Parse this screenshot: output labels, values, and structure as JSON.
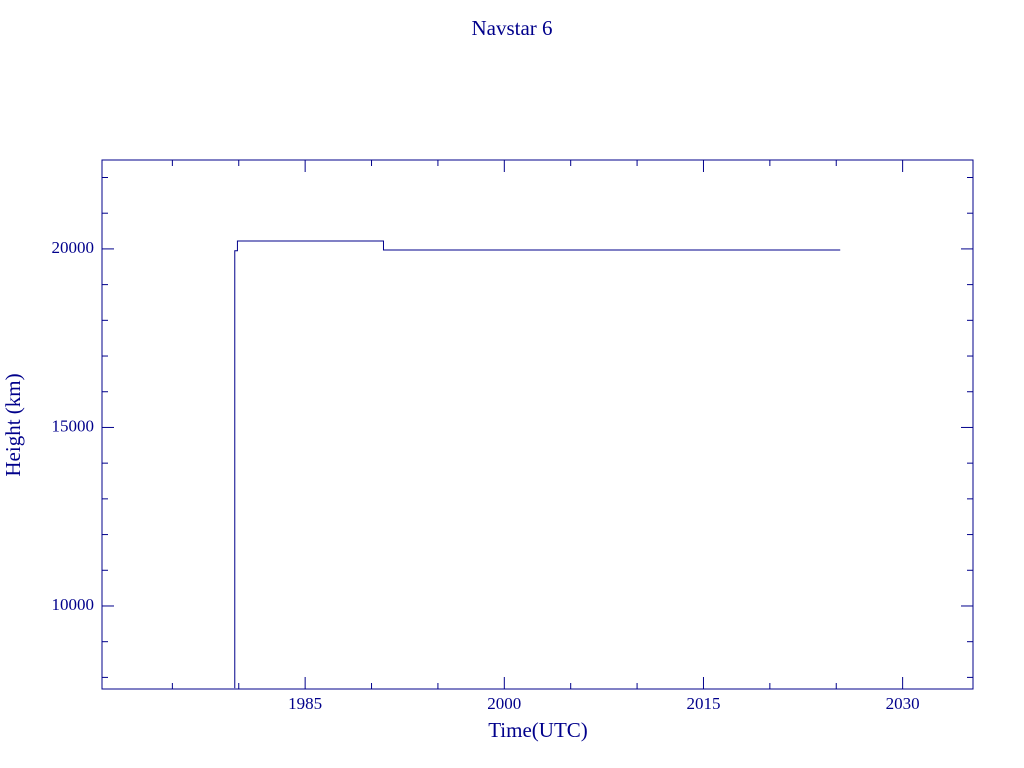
{
  "chart_data": {
    "type": "line",
    "title": "Navstar 6",
    "x_label": "Time(UTC)",
    "y_label": "Height (km)",
    "color": "#00008b",
    "x": [
      1979.7,
      1979.7,
      1979.9,
      1979.9,
      1990.9,
      1990.9,
      2025.3
    ],
    "values": [
      7700,
      19950,
      19950,
      20220,
      20220,
      19970,
      19970
    ],
    "xlim": [
      1969.7,
      2035.3
    ],
    "ylim": [
      7675,
      22490
    ],
    "xticks": [
      1985,
      2000,
      2015,
      2030
    ],
    "xminorticks": [
      1975,
      1980,
      1990,
      1995,
      2005,
      2010,
      2020,
      2025
    ],
    "yticks": [
      10000,
      15000,
      20000
    ],
    "yminorticks": [
      8000,
      9000,
      11000,
      12000,
      13000,
      14000,
      16000,
      17000,
      18000,
      19000,
      21000,
      22000
    ]
  }
}
